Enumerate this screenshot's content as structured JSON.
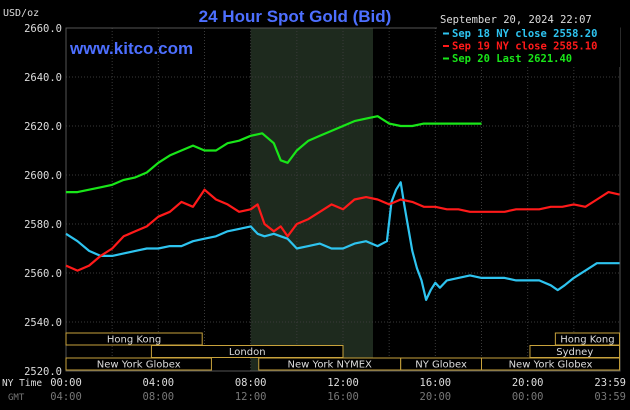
{
  "header": {
    "unit_label": "USD/oz",
    "title": "24 Hour Spot Gold (Bid)",
    "site": "www.kitco.com",
    "timestamp": "September 20, 2024 22:07"
  },
  "legend": [
    {
      "label": "Sep 18 NY close 2558.20",
      "color": "#2ec4f0"
    },
    {
      "label": "Sep 19 NY close 2585.10",
      "color": "#ff1a1a"
    },
    {
      "label": "Sep 20 Last 2621.40",
      "color": "#19e619"
    }
  ],
  "time_axis": {
    "row1_label": "NY Time",
    "row2_label": "GMT",
    "ny_ticks": [
      "00:00",
      "04:00",
      "08:00",
      "12:00",
      "16:00",
      "20:00",
      "23:59"
    ],
    "gmt_ticks": [
      "04:00",
      "08:00",
      "12:00",
      "16:00",
      "20:00",
      "00:00",
      "03:59"
    ]
  },
  "sessions": [
    {
      "label": "Hong Kong",
      "row": 0,
      "start": 0.0,
      "end": 5.9
    },
    {
      "label": "Hong Kong",
      "row": 0,
      "start": 21.2,
      "end": 23.98
    },
    {
      "label": "London",
      "row": 1,
      "start": 3.7,
      "end": 12.0
    },
    {
      "label": "Sydney",
      "row": 1,
      "start": 20.1,
      "end": 23.98
    },
    {
      "label": "New York Globex",
      "row": 2,
      "start": 0.0,
      "end": 6.3
    },
    {
      "label": "New York NYMEX",
      "row": 2,
      "start": 8.35,
      "end": 14.5
    },
    {
      "label": "NY Globex",
      "row": 2,
      "start": 14.5,
      "end": 18.0
    },
    {
      "label": "New York Globex",
      "row": 2,
      "start": 18.0,
      "end": 23.98
    }
  ],
  "colors": {
    "background": "#000000",
    "plot_bg": "#000000",
    "highlight_band": "#1e2a1e",
    "grid": "#3a3a3a",
    "axis_text": "#dddddd",
    "title": "#4d6fff",
    "session_border": "#c8a23c",
    "session_text": "#dddddd"
  },
  "chart_data": {
    "type": "line",
    "title": "24 Hour Spot Gold (Bid)",
    "xlabel": "NY Time",
    "ylabel": "USD/oz",
    "xlim": [
      0,
      24
    ],
    "ylim": [
      2520,
      2660
    ],
    "y_ticks": [
      2520,
      2540,
      2560,
      2580,
      2600,
      2620,
      2640,
      2660
    ],
    "highlight_band": [
      8.0,
      13.3
    ],
    "grid": true,
    "legend_position": "top-right",
    "series": [
      {
        "name": "Sep 18 NY close 2558.20",
        "color": "#2ec4f0",
        "x": [
          0,
          0.5,
          1,
          1.5,
          2,
          2.5,
          3,
          3.5,
          4,
          4.5,
          5,
          5.5,
          6,
          6.5,
          7,
          7.5,
          8,
          8.3,
          8.6,
          9,
          9.3,
          9.6,
          10,
          10.5,
          11,
          11.5,
          12,
          12.5,
          13,
          13.5,
          13.9,
          14.1,
          14.3,
          14.5,
          14.65,
          14.8,
          15,
          15.2,
          15.4,
          15.6,
          15.8,
          16,
          16.2,
          16.5,
          17,
          17.5,
          18,
          18.5,
          19,
          19.5,
          20,
          20.5,
          21,
          21.3,
          21.6,
          22,
          22.5,
          23,
          23.5,
          23.98
        ],
        "y": [
          2576,
          2573,
          2569,
          2567,
          2567,
          2568,
          2569,
          2570,
          2570,
          2571,
          2571,
          2573,
          2574,
          2575,
          2577,
          2578,
          2579,
          2576,
          2575,
          2576,
          2575,
          2574,
          2570,
          2571,
          2572,
          2570,
          2570,
          2572,
          2573,
          2571,
          2573,
          2589,
          2594,
          2597,
          2588,
          2580,
          2569,
          2562,
          2557,
          2549,
          2553,
          2556,
          2554,
          2557,
          2558,
          2559,
          2558,
          2558,
          2558,
          2557,
          2557,
          2557,
          2555,
          2553,
          2555,
          2558,
          2561,
          2564,
          2564,
          2564
        ]
      },
      {
        "name": "Sep 19 NY close 2585.10",
        "color": "#ff1a1a",
        "x": [
          0,
          0.5,
          1,
          1.5,
          2,
          2.5,
          3,
          3.5,
          4,
          4.5,
          5,
          5.5,
          6,
          6.5,
          7,
          7.5,
          8,
          8.3,
          8.6,
          9,
          9.3,
          9.6,
          10,
          10.5,
          11,
          11.5,
          12,
          12.5,
          13,
          13.5,
          14,
          14.5,
          15,
          15.5,
          16,
          16.5,
          17,
          17.5,
          18,
          18.5,
          19,
          19.5,
          20,
          20.5,
          21,
          21.5,
          22,
          22.5,
          23,
          23.5,
          23.98
        ],
        "y": [
          2563,
          2561,
          2563,
          2567,
          2570,
          2575,
          2577,
          2579,
          2583,
          2585,
          2589,
          2587,
          2594,
          2590,
          2588,
          2585,
          2586,
          2588,
          2580,
          2577,
          2579,
          2575,
          2580,
          2582,
          2585,
          2588,
          2586,
          2590,
          2591,
          2590,
          2588,
          2590,
          2589,
          2587,
          2587,
          2586,
          2586,
          2585,
          2585,
          2585,
          2585,
          2586,
          2586,
          2586,
          2587,
          2587,
          2588,
          2587,
          2590,
          2593,
          2592
        ]
      },
      {
        "name": "Sep 20 Last 2621.40",
        "color": "#19e619",
        "x": [
          0,
          0.5,
          1,
          1.5,
          2,
          2.5,
          3,
          3.5,
          4,
          4.5,
          5,
          5.5,
          6,
          6.5,
          7,
          7.5,
          8,
          8.5,
          9,
          9.3,
          9.6,
          10,
          10.5,
          11,
          11.5,
          12,
          12.5,
          13,
          13.5,
          14,
          14.5,
          15,
          15.5,
          16,
          16.5,
          17,
          17.5,
          18
        ],
        "y": [
          2593,
          2593,
          2594,
          2595,
          2596,
          2598,
          2599,
          2601,
          2605,
          2608,
          2610,
          2612,
          2610,
          2610,
          2613,
          2614,
          2616,
          2617,
          2613,
          2606,
          2605,
          2610,
          2614,
          2616,
          2618,
          2620,
          2622,
          2623,
          2624,
          2621,
          2620,
          2620,
          2621,
          2621,
          2621,
          2621,
          2621,
          2621
        ]
      }
    ]
  }
}
